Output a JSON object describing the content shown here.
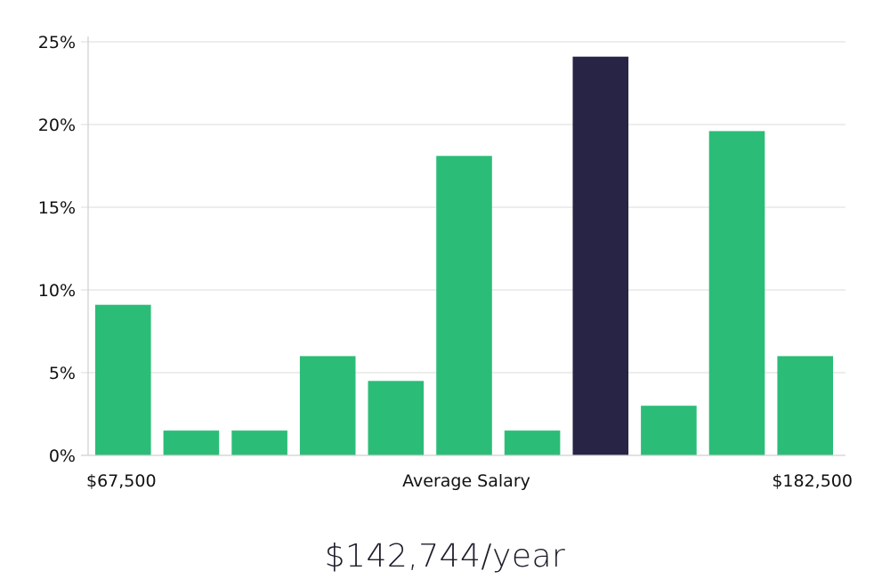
{
  "chart_data": {
    "type": "bar",
    "title": "",
    "xlabel": "Average Salary",
    "ylabel": "",
    "x_min_label": "$67,500",
    "x_max_label": "$182,500",
    "y_ticks": [
      "0%",
      "5%",
      "10%",
      "15%",
      "20%",
      "25%"
    ],
    "y_tick_values": [
      0,
      5,
      10,
      15,
      20,
      25
    ],
    "ylim": [
      0,
      25
    ],
    "grid": true,
    "values": [
      9.1,
      1.5,
      1.5,
      6.0,
      4.5,
      18.1,
      1.5,
      24.1,
      3.0,
      19.6,
      6.0
    ],
    "highlight_index": 7,
    "colors": {
      "bar": "#2bbd78",
      "highlight": "#272445"
    }
  },
  "salary": {
    "display": "$142,744/year"
  }
}
